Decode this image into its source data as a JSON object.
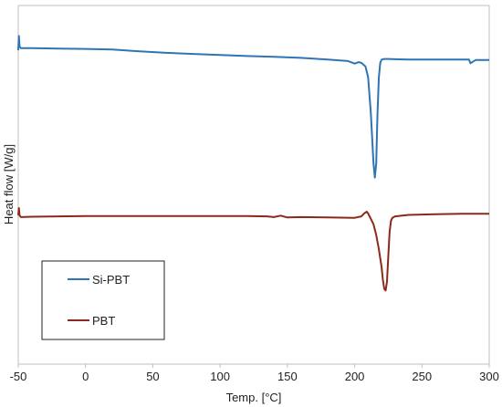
{
  "chart_data": {
    "type": "line",
    "xlabel": "Temp. [°C]",
    "ylabel": "Heat flow [W/g]",
    "xlim": [
      -50,
      300
    ],
    "xticks": [
      -50,
      0,
      50,
      100,
      150,
      200,
      250,
      300
    ],
    "ylim": [
      0,
      1
    ],
    "grid": false,
    "legend_position": "bottom-left",
    "series": [
      {
        "name": "Si-PBT",
        "color": "#2e75b6",
        "x": [
          -50,
          -49.5,
          -49,
          -48,
          -40,
          -20,
          0,
          20,
          40,
          60,
          80,
          100,
          120,
          140,
          160,
          180,
          195,
          200,
          203,
          205,
          208,
          210,
          212,
          214,
          215,
          216,
          217,
          218,
          219,
          220,
          222,
          225,
          230,
          240,
          260,
          280,
          285,
          286,
          290,
          300
        ],
        "y": [
          0.875,
          0.915,
          0.885,
          0.881,
          0.881,
          0.88,
          0.879,
          0.877,
          0.872,
          0.868,
          0.865,
          0.862,
          0.859,
          0.857,
          0.854,
          0.849,
          0.845,
          0.838,
          0.842,
          0.84,
          0.83,
          0.8,
          0.7,
          0.56,
          0.52,
          0.56,
          0.7,
          0.8,
          0.84,
          0.849,
          0.851,
          0.851,
          0.85,
          0.849,
          0.849,
          0.849,
          0.849,
          0.839,
          0.848,
          0.848
        ]
      },
      {
        "name": "PBT",
        "color": "#8b2a1a",
        "x": [
          -50,
          -49.5,
          -49,
          -48,
          -40,
          -20,
          0,
          20,
          40,
          60,
          80,
          100,
          120,
          135,
          140,
          145,
          150,
          160,
          180,
          200,
          205,
          207,
          209,
          210,
          212,
          214,
          216,
          218,
          220,
          221,
          222,
          223,
          224,
          225,
          226,
          227,
          228,
          230,
          240,
          260,
          280,
          300
        ],
        "y": [
          0.415,
          0.435,
          0.414,
          0.41,
          0.411,
          0.412,
          0.413,
          0.413,
          0.413,
          0.413,
          0.413,
          0.413,
          0.413,
          0.412,
          0.41,
          0.414,
          0.409,
          0.41,
          0.409,
          0.408,
          0.412,
          0.42,
          0.425,
          0.42,
          0.405,
          0.39,
          0.36,
          0.32,
          0.27,
          0.235,
          0.21,
          0.205,
          0.23,
          0.3,
          0.37,
          0.4,
          0.408,
          0.412,
          0.416,
          0.418,
          0.419,
          0.419
        ]
      }
    ]
  }
}
